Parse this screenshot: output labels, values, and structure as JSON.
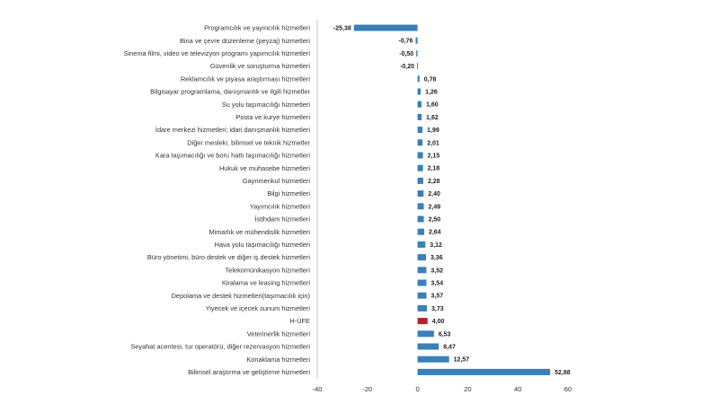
{
  "chart_data": {
    "type": "bar",
    "orientation": "horizontal",
    "title": "",
    "xlabel": "",
    "ylabel": "",
    "xlim": [
      -40,
      60
    ],
    "xticks": [
      -40,
      -20,
      0,
      20,
      40,
      60
    ],
    "grid": false,
    "legend": "none",
    "colors": {
      "default": "#3a7fb8",
      "highlight": "#b4242c"
    },
    "highlight_category": "H-ÜFE",
    "categories": [
      "Programcılık ve yayıncılık hizmetleri",
      "Bina ve çevre düzenleme (peyzaj) hizmetleri",
      "Sinema filmi, video ve televizyon programı yapımcılık hizmetleri",
      "Güvenlik ve soruşturma hizmetleri",
      "Reklamcılık ve piyasa araştırması hizmetleri",
      "Bilgisayar programlama, danışmanlık ve ilgili hizmetler",
      "Su yolu taşımacılığı hizmetleri",
      "Posta ve kurye hizmetleri",
      "İdare merkezi hizmetleri; idari danışmanlık hizmetleri",
      "Diğer mesleki, bilimsel ve teknik hizmetler",
      "Kara taşımacılığı ve boru hattı taşımacılığı hizmetleri",
      "Hukuk ve muhasebe hizmetleri",
      "Gayrimenkul hizmetleri",
      "Bilgi hizmetleri",
      "Yayımcılık hizmetleri",
      "İstihdam hizmetleri",
      "Mimarlık ve mühendislik hizmetleri",
      "Hava yolu taşımacılığı hizmetleri",
      "Büro yönetimi, büro destek ve diğer iş destek hizmetleri",
      "Telekomünikasyon hizmetleri",
      "Kiralama ve leasing hizmetleri",
      "Depolama ve destek hizmetleri(taşımacılık için)",
      "Yiyecek ve içecek sunum hizmetleri",
      "H-ÜFE",
      "Veterinerlik hizmetleri",
      "Seyahat acentesi, tur operatörü, diğer rezervasyon hizmetleri",
      "Konaklama hizmetleri",
      "Bilimsel araştırma ve geliştirme hizmetleri"
    ],
    "values": [
      -25.38,
      -0.76,
      -0.5,
      -0.2,
      0.78,
      1.26,
      1.6,
      1.62,
      1.99,
      2.01,
      2.15,
      2.18,
      2.28,
      2.4,
      2.49,
      2.5,
      2.64,
      3.12,
      3.36,
      3.52,
      3.54,
      3.57,
      3.73,
      4.0,
      6.53,
      8.47,
      12.57,
      52.88
    ],
    "value_labels": [
      "-25,38",
      "-0,76",
      "-0,50",
      "-0,20",
      "0,78",
      "1,26",
      "1,60",
      "1,62",
      "1,99",
      "2,01",
      "2,15",
      "2,18",
      "2,28",
      "2,40",
      "2,49",
      "2,50",
      "2,64",
      "3,12",
      "3,36",
      "3,52",
      "3,54",
      "3,57",
      "3,73",
      "4,00",
      "6,53",
      "8,47",
      "12,57",
      "52,88"
    ]
  }
}
